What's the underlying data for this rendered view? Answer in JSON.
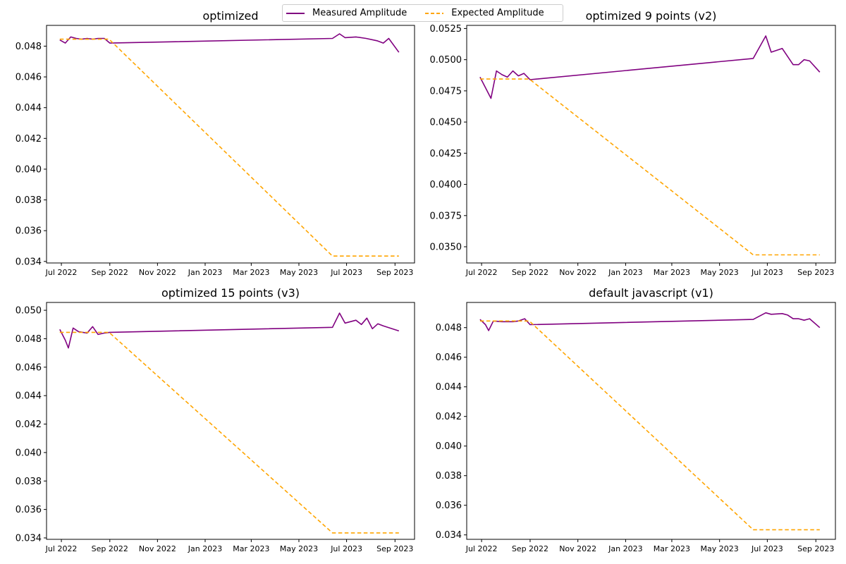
{
  "legend": {
    "items": [
      {
        "label": "Measured Amplitude",
        "color": "#800080",
        "style": "solid"
      },
      {
        "label": "Expected Amplitude",
        "color": "#FFA500",
        "style": "dashed"
      }
    ],
    "placement": "top-center"
  },
  "chart_data": [
    {
      "type": "line",
      "title": "optimized",
      "xlabel": "",
      "ylabel": "",
      "x_type": "date",
      "xlim": [
        "2022-06-12",
        "2023-09-26"
      ],
      "ylim": [
        0.0339,
        0.04935
      ],
      "y_ticks": [
        0.034,
        0.036,
        0.038,
        0.04,
        0.042,
        0.044,
        0.046,
        0.048
      ],
      "y_tick_labels": [
        "0.034",
        "0.036",
        "0.038",
        "0.040",
        "0.042",
        "0.044",
        "0.046",
        "0.048"
      ],
      "x_ticks": [
        "2022-07-01",
        "2022-09-01",
        "2022-11-01",
        "2023-01-01",
        "2023-03-01",
        "2023-05-01",
        "2023-07-01",
        "2023-09-01"
      ],
      "x_tick_labels": [
        "Jul 2022",
        "Sep 2022",
        "Nov 2022",
        "Jan 2023",
        "Mar 2023",
        "May 2023",
        "Jul 2023",
        "Sep 2023"
      ],
      "grid": false,
      "series": [
        {
          "name": "Measured Amplitude",
          "color": "#800080",
          "style": "solid",
          "points": [
            [
              "2022-06-29",
              0.0484
            ],
            [
              "2022-07-06",
              0.0482
            ],
            [
              "2022-07-13",
              0.0486
            ],
            [
              "2022-07-20",
              0.0485
            ],
            [
              "2022-07-27",
              0.04845
            ],
            [
              "2022-08-03",
              0.0485
            ],
            [
              "2022-08-10",
              0.04845
            ],
            [
              "2022-08-17",
              0.0485
            ],
            [
              "2022-08-25",
              0.0485
            ],
            [
              "2022-09-01",
              0.0482
            ],
            [
              "2023-06-13",
              0.0485
            ],
            [
              "2023-06-22",
              0.0488
            ],
            [
              "2023-06-29",
              0.04855
            ],
            [
              "2023-07-13",
              0.0486
            ],
            [
              "2023-07-26",
              0.0485
            ],
            [
              "2023-08-09",
              0.04835
            ],
            [
              "2023-08-17",
              0.0482
            ],
            [
              "2023-08-24",
              0.0485
            ],
            [
              "2023-09-06",
              0.0476
            ]
          ]
        },
        {
          "name": "Expected Amplitude",
          "color": "#FFA500",
          "style": "dashed",
          "points": [
            [
              "2022-06-29",
              0.04845
            ],
            [
              "2022-08-31",
              0.04845
            ],
            [
              "2023-06-13",
              0.03435
            ],
            [
              "2023-09-06",
              0.03435
            ]
          ]
        }
      ]
    },
    {
      "type": "line",
      "title": "optimized 9 points (v2)",
      "xlabel": "",
      "ylabel": "",
      "x_type": "date",
      "xlim": [
        "2022-06-12",
        "2023-09-26"
      ],
      "ylim": [
        0.0337,
        0.05275
      ],
      "y_ticks": [
        0.035,
        0.0375,
        0.04,
        0.0425,
        0.045,
        0.0475,
        0.05,
        0.0525
      ],
      "y_tick_labels": [
        "0.0350",
        "0.0375",
        "0.0400",
        "0.0425",
        "0.0450",
        "0.0475",
        "0.0500",
        "0.0525"
      ],
      "x_ticks": [
        "2022-07-01",
        "2022-09-01",
        "2022-11-01",
        "2023-01-01",
        "2023-03-01",
        "2023-05-01",
        "2023-07-01",
        "2023-09-01"
      ],
      "x_tick_labels": [
        "Jul 2022",
        "Sep 2022",
        "Nov 2022",
        "Jan 2023",
        "Mar 2023",
        "May 2023",
        "Jul 2023",
        "Sep 2023"
      ],
      "grid": false,
      "series": [
        {
          "name": "Measured Amplitude",
          "color": "#800080",
          "style": "solid",
          "points": [
            [
              "2022-06-29",
              0.0486
            ],
            [
              "2022-07-13",
              0.0469
            ],
            [
              "2022-07-20",
              0.0491
            ],
            [
              "2022-07-27",
              0.0488
            ],
            [
              "2022-08-03",
              0.0486
            ],
            [
              "2022-08-10",
              0.0491
            ],
            [
              "2022-08-17",
              0.0487
            ],
            [
              "2022-08-24",
              0.0489
            ],
            [
              "2022-09-01",
              0.0484
            ],
            [
              "2023-06-13",
              0.0501
            ],
            [
              "2023-06-29",
              0.0519
            ],
            [
              "2023-07-06",
              0.0506
            ],
            [
              "2023-07-20",
              0.0509
            ],
            [
              "2023-08-03",
              0.0496
            ],
            [
              "2023-08-10",
              0.0496
            ],
            [
              "2023-08-17",
              0.05
            ],
            [
              "2023-08-24",
              0.0499
            ],
            [
              "2023-09-06",
              0.049
            ]
          ]
        },
        {
          "name": "Expected Amplitude",
          "color": "#FFA500",
          "style": "dashed",
          "points": [
            [
              "2022-06-29",
              0.04845
            ],
            [
              "2022-08-31",
              0.04845
            ],
            [
              "2023-06-13",
              0.03435
            ],
            [
              "2023-09-06",
              0.03435
            ]
          ]
        }
      ]
    },
    {
      "type": "line",
      "title": "optimized 15 points (v3)",
      "xlabel": "",
      "ylabel": "",
      "x_type": "date",
      "xlim": [
        "2022-06-12",
        "2023-09-26"
      ],
      "ylim": [
        0.0339,
        0.05055
      ],
      "y_ticks": [
        0.034,
        0.036,
        0.038,
        0.04,
        0.042,
        0.044,
        0.046,
        0.048,
        0.05
      ],
      "y_tick_labels": [
        "0.034",
        "0.036",
        "0.038",
        "0.040",
        "0.042",
        "0.044",
        "0.046",
        "0.048",
        "0.050"
      ],
      "x_ticks": [
        "2022-07-01",
        "2022-09-01",
        "2022-11-01",
        "2023-01-01",
        "2023-03-01",
        "2023-05-01",
        "2023-07-01",
        "2023-09-01"
      ],
      "x_tick_labels": [
        "Jul 2022",
        "Sep 2022",
        "Nov 2022",
        "Jan 2023",
        "Mar 2023",
        "May 2023",
        "Jul 2023",
        "Sep 2023"
      ],
      "grid": false,
      "series": [
        {
          "name": "Measured Amplitude",
          "color": "#800080",
          "style": "solid",
          "points": [
            [
              "2022-06-29",
              0.04865
            ],
            [
              "2022-07-06",
              0.0479
            ],
            [
              "2022-07-10",
              0.04735
            ],
            [
              "2022-07-16",
              0.04875
            ],
            [
              "2022-07-23",
              0.0485
            ],
            [
              "2022-08-03",
              0.0484
            ],
            [
              "2022-08-10",
              0.04885
            ],
            [
              "2022-08-17",
              0.0483
            ],
            [
              "2022-08-25",
              0.0484
            ],
            [
              "2022-09-01",
              0.04845
            ],
            [
              "2023-06-13",
              0.0488
            ],
            [
              "2023-06-22",
              0.0498
            ],
            [
              "2023-06-29",
              0.0491
            ],
            [
              "2023-07-13",
              0.0493
            ],
            [
              "2023-07-20",
              0.049
            ],
            [
              "2023-07-27",
              0.04945
            ],
            [
              "2023-08-03",
              0.0487
            ],
            [
              "2023-08-10",
              0.04905
            ],
            [
              "2023-08-17",
              0.0489
            ],
            [
              "2023-09-06",
              0.04855
            ]
          ]
        },
        {
          "name": "Expected Amplitude",
          "color": "#FFA500",
          "style": "dashed",
          "points": [
            [
              "2022-06-29",
              0.04845
            ],
            [
              "2022-08-31",
              0.04845
            ],
            [
              "2023-06-13",
              0.03435
            ],
            [
              "2023-09-06",
              0.03435
            ]
          ]
        }
      ]
    },
    {
      "type": "line",
      "title": "default javascript (v1)",
      "xlabel": "",
      "ylabel": "",
      "x_type": "date",
      "xlim": [
        "2022-06-12",
        "2023-09-26"
      ],
      "ylim": [
        0.0337,
        0.0497
      ],
      "y_ticks": [
        0.034,
        0.036,
        0.038,
        0.04,
        0.042,
        0.044,
        0.046,
        0.048
      ],
      "y_tick_labels": [
        "0.034",
        "0.036",
        "0.038",
        "0.040",
        "0.042",
        "0.044",
        "0.046",
        "0.048"
      ],
      "x_ticks": [
        "2022-07-01",
        "2022-09-01",
        "2022-11-01",
        "2023-01-01",
        "2023-03-01",
        "2023-05-01",
        "2023-07-01",
        "2023-09-01"
      ],
      "x_tick_labels": [
        "Jul 2022",
        "Sep 2022",
        "Nov 2022",
        "Jan 2023",
        "Mar 2023",
        "May 2023",
        "Jul 2023",
        "Sep 2023"
      ],
      "grid": false,
      "series": [
        {
          "name": "Measured Amplitude",
          "color": "#800080",
          "style": "solid",
          "points": [
            [
              "2022-06-29",
              0.04855
            ],
            [
              "2022-07-06",
              0.0482
            ],
            [
              "2022-07-10",
              0.0478
            ],
            [
              "2022-07-16",
              0.04845
            ],
            [
              "2022-07-27",
              0.0484
            ],
            [
              "2022-08-10",
              0.0484
            ],
            [
              "2022-08-17",
              0.04845
            ],
            [
              "2022-08-25",
              0.0486
            ],
            [
              "2022-09-01",
              0.0482
            ],
            [
              "2023-06-13",
              0.04855
            ],
            [
              "2023-06-29",
              0.049
            ],
            [
              "2023-07-06",
              0.0489
            ],
            [
              "2023-07-20",
              0.04895
            ],
            [
              "2023-07-27",
              0.04885
            ],
            [
              "2023-08-03",
              0.0486
            ],
            [
              "2023-08-10",
              0.0486
            ],
            [
              "2023-08-17",
              0.0485
            ],
            [
              "2023-08-24",
              0.0486
            ],
            [
              "2023-09-06",
              0.048
            ]
          ]
        },
        {
          "name": "Expected Amplitude",
          "color": "#FFA500",
          "style": "dashed",
          "points": [
            [
              "2022-06-29",
              0.04845
            ],
            [
              "2022-08-31",
              0.04845
            ],
            [
              "2023-06-13",
              0.03435
            ],
            [
              "2023-09-06",
              0.03435
            ]
          ]
        }
      ]
    }
  ]
}
